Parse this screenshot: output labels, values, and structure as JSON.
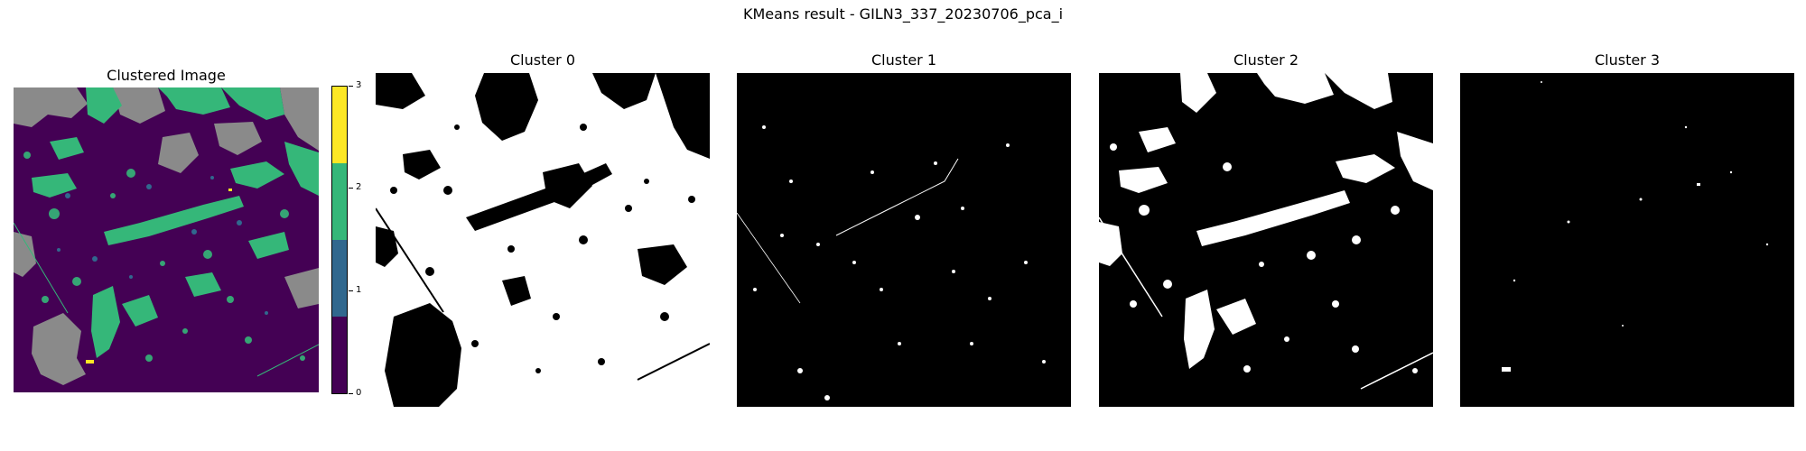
{
  "figure": {
    "title": "KMeans result - GILN3_337_20230706_pca_i"
  },
  "panels": [
    {
      "title": "Clustered Image"
    },
    {
      "title": "Cluster 0"
    },
    {
      "title": "Cluster 1"
    },
    {
      "title": "Cluster 2"
    },
    {
      "title": "Cluster 3"
    }
  ],
  "colorbar": {
    "ticks": [
      "0",
      "1",
      "2",
      "3"
    ],
    "colors": [
      "#440154",
      "#31688e",
      "#35b779",
      "#fde725"
    ]
  },
  "colors": {
    "nodata": "#8a8a8a",
    "mask_on": "#ffffff",
    "mask_off": "#000000"
  }
}
